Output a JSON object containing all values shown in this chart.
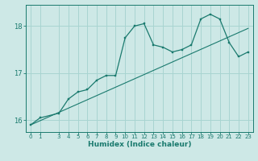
{
  "xlabel": "Humidex (Indice chaleur)",
  "background_color": "#cde8e6",
  "grid_color": "#a8d4d1",
  "line_color": "#1a7a6e",
  "x_values": [
    0,
    1,
    3,
    4,
    5,
    6,
    7,
    8,
    9,
    10,
    11,
    12,
    13,
    14,
    15,
    16,
    17,
    18,
    19,
    20,
    21,
    22,
    23
  ],
  "y_curve": [
    15.9,
    16.05,
    16.15,
    16.45,
    16.6,
    16.65,
    16.85,
    16.95,
    16.95,
    17.75,
    18.0,
    18.05,
    17.6,
    17.55,
    17.45,
    17.5,
    17.6,
    18.15,
    18.25,
    18.15,
    17.65,
    17.35,
    17.45
  ],
  "y_line_x": [
    0,
    23
  ],
  "y_line_y": [
    15.9,
    17.95
  ],
  "ylim": [
    15.75,
    18.45
  ],
  "yticks": [
    16,
    17,
    18
  ],
  "xlim": [
    -0.5,
    23.5
  ],
  "xticks": [
    0,
    1,
    3,
    4,
    5,
    6,
    7,
    8,
    9,
    10,
    11,
    12,
    13,
    14,
    15,
    16,
    17,
    18,
    19,
    20,
    21,
    22,
    23
  ],
  "tick_fontsize": 5.0,
  "ylabel_fontsize": 6.0,
  "xlabel_fontsize": 6.5
}
